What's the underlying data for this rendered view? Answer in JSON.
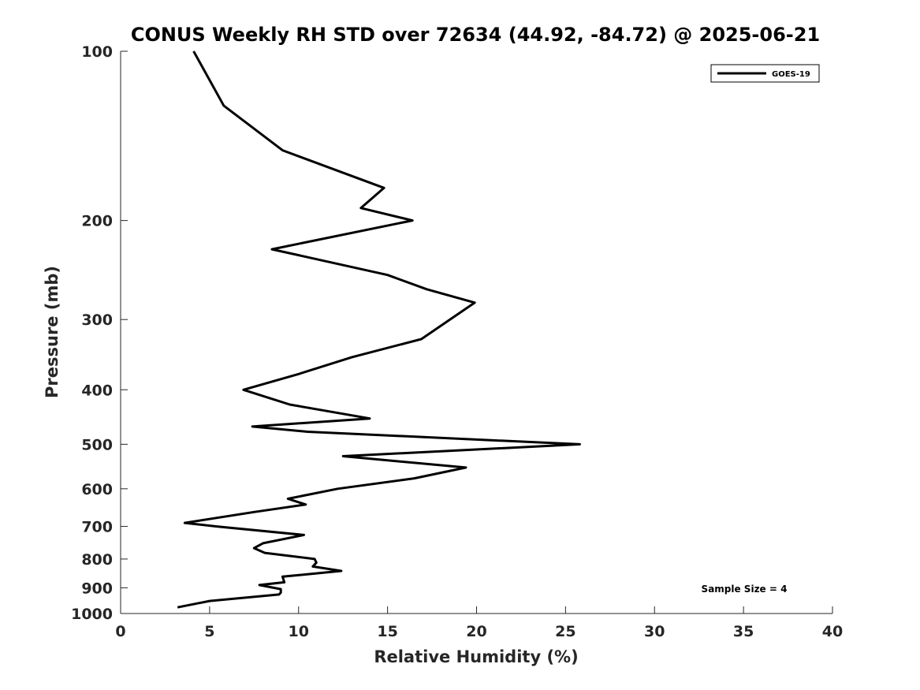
{
  "chart_data": {
    "type": "line",
    "title": "CONUS Weekly RH STD over 72634 (44.92, -84.72) @ 2025-06-21",
    "xlabel": "Relative Humidity (%)",
    "ylabel": "Pressure (mb)",
    "xlim": [
      0,
      40
    ],
    "ylim": [
      100,
      1000
    ],
    "y_scale": "log",
    "y_direction": "reversed",
    "xticks": [
      0,
      5,
      10,
      15,
      20,
      25,
      30,
      35,
      40
    ],
    "yticks": [
      100,
      200,
      300,
      400,
      500,
      600,
      700,
      800,
      900,
      1000
    ],
    "grid": false,
    "legend_position": "top-right",
    "annotation": "Sample Size = 4",
    "series": [
      {
        "name": "GOES-19",
        "color": "#000000",
        "points": [
          [
            4.1,
            100
          ],
          [
            5.8,
            125
          ],
          [
            9.1,
            150
          ],
          [
            14.8,
            175
          ],
          [
            13.5,
            190
          ],
          [
            16.4,
            200
          ],
          [
            8.5,
            225
          ],
          [
            15.0,
            250
          ],
          [
            17.2,
            265
          ],
          [
            19.9,
            280
          ],
          [
            16.9,
            325
          ],
          [
            13.0,
            350
          ],
          [
            10.0,
            375
          ],
          [
            6.9,
            400
          ],
          [
            9.5,
            425
          ],
          [
            14.0,
            450
          ],
          [
            7.4,
            465
          ],
          [
            10.5,
            475
          ],
          [
            25.8,
            500
          ],
          [
            12.5,
            525
          ],
          [
            19.4,
            550
          ],
          [
            16.5,
            575
          ],
          [
            12.2,
            600
          ],
          [
            9.4,
            625
          ],
          [
            10.4,
            640
          ],
          [
            7.5,
            660
          ],
          [
            3.6,
            690
          ],
          [
            5.4,
            700
          ],
          [
            10.3,
            725
          ],
          [
            8.0,
            750
          ],
          [
            7.5,
            765
          ],
          [
            8.1,
            780
          ],
          [
            10.9,
            800
          ],
          [
            11.0,
            812
          ],
          [
            10.8,
            825
          ],
          [
            12.4,
            840
          ],
          [
            9.1,
            860
          ],
          [
            9.2,
            880
          ],
          [
            7.8,
            890
          ],
          [
            9.0,
            905
          ],
          [
            9.0,
            918
          ],
          [
            8.9,
            925
          ],
          [
            5.0,
            950
          ],
          [
            3.2,
            975
          ]
        ]
      }
    ]
  }
}
